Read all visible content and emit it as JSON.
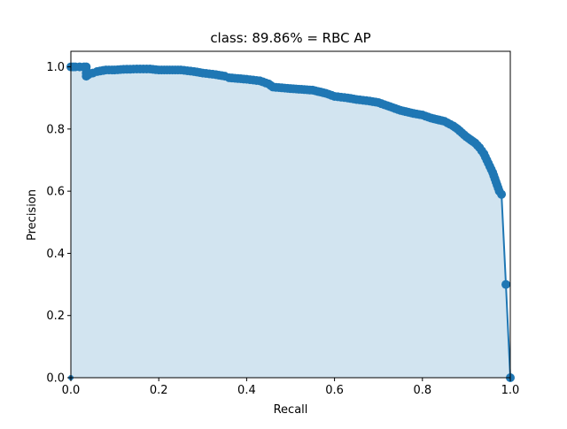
{
  "chart_data": {
    "type": "line",
    "title": "class: 89.86% = RBC AP",
    "xlabel": "Recall",
    "ylabel": "Precision",
    "xlim": [
      0.0,
      1.0
    ],
    "ylim": [
      0.0,
      1.05
    ],
    "xticks": [
      "0.0",
      "0.2",
      "0.4",
      "0.6",
      "0.8",
      "1.0"
    ],
    "yticks": [
      "0.0",
      "0.2",
      "0.4",
      "0.6",
      "0.8",
      "1.0"
    ],
    "grid": false,
    "legend": "none",
    "series": [
      {
        "x": [
          0.0,
          0.005,
          0.01,
          0.02,
          0.03,
          0.035,
          0.035,
          0.04,
          0.05,
          0.06,
          0.08,
          0.1,
          0.12,
          0.15,
          0.18,
          0.2,
          0.25,
          0.28,
          0.3,
          0.33,
          0.35,
          0.36,
          0.4,
          0.43,
          0.45,
          0.46,
          0.5,
          0.55,
          0.58,
          0.6,
          0.63,
          0.65,
          0.68,
          0.7,
          0.72,
          0.75,
          0.78,
          0.8,
          0.82,
          0.85,
          0.87,
          0.88,
          0.9,
          0.92,
          0.93,
          0.94,
          0.95,
          0.96,
          0.965,
          0.97,
          0.975,
          0.98,
          0.99,
          1.0
        ],
        "y": [
          1.0,
          1.0,
          1.0,
          1.0,
          1.0,
          1.0,
          0.97,
          0.975,
          0.98,
          0.985,
          0.99,
          0.99,
          0.992,
          0.993,
          0.993,
          0.99,
          0.99,
          0.985,
          0.98,
          0.975,
          0.97,
          0.965,
          0.96,
          0.955,
          0.945,
          0.935,
          0.93,
          0.925,
          0.915,
          0.905,
          0.9,
          0.895,
          0.89,
          0.885,
          0.875,
          0.86,
          0.85,
          0.845,
          0.835,
          0.825,
          0.81,
          0.8,
          0.775,
          0.755,
          0.74,
          0.72,
          0.69,
          0.66,
          0.64,
          0.62,
          0.6,
          0.59,
          0.3,
          0.0
        ],
        "color": "#1f77b4",
        "marker": "circle"
      }
    ],
    "fill_color": "#1f77b4",
    "fill_opacity": 0.2
  }
}
